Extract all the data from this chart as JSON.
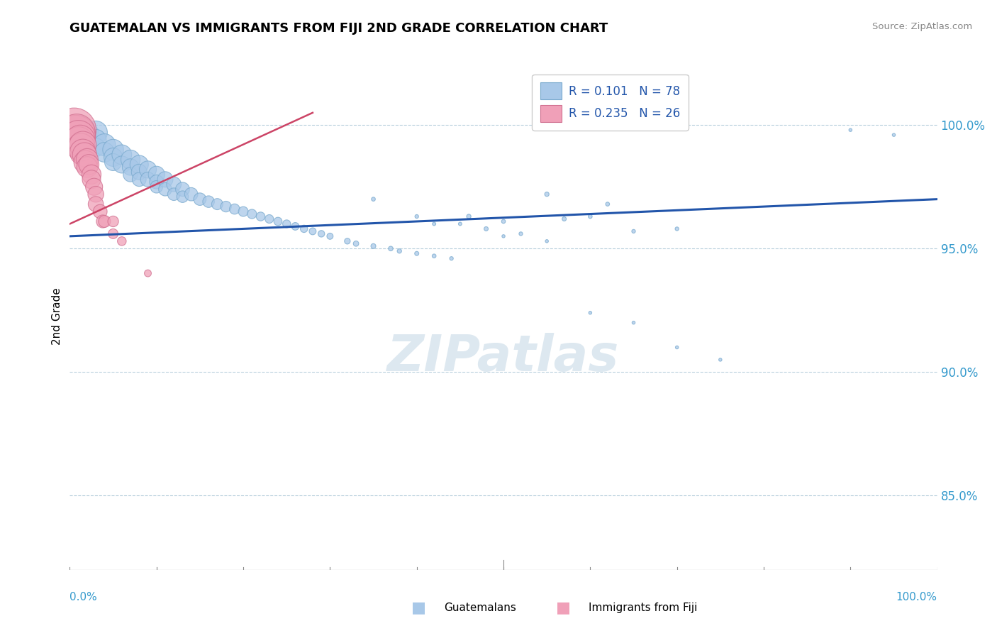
{
  "title": "GUATEMALAN VS IMMIGRANTS FROM FIJI 2ND GRADE CORRELATION CHART",
  "source": "Source: ZipAtlas.com",
  "ylabel": "2nd Grade",
  "xlim": [
    0.0,
    1.0
  ],
  "ylim": [
    0.82,
    1.025
  ],
  "legend_r_blue": "0.101",
  "legend_n_blue": "78",
  "legend_r_pink": "0.235",
  "legend_n_pink": "26",
  "legend_label_blue": "Guatemalans",
  "legend_label_pink": "Immigrants from Fiji",
  "blue_color": "#a8c8e8",
  "blue_edge_color": "#7aaace",
  "pink_color": "#f0a0b8",
  "pink_edge_color": "#d07090",
  "trendline_blue_color": "#2255aa",
  "trendline_pink_color": "#cc4466",
  "watermark_color": "#dde8f0",
  "grid_color": "#b8d0dc",
  "blue_x": [
    0.01,
    0.01,
    0.02,
    0.02,
    0.03,
    0.03,
    0.03,
    0.04,
    0.04,
    0.05,
    0.05,
    0.05,
    0.06,
    0.06,
    0.07,
    0.07,
    0.07,
    0.08,
    0.08,
    0.08,
    0.09,
    0.09,
    0.1,
    0.1,
    0.1,
    0.11,
    0.11,
    0.12,
    0.12,
    0.13,
    0.13,
    0.14,
    0.15,
    0.16,
    0.17,
    0.18,
    0.19,
    0.2,
    0.21,
    0.22,
    0.23,
    0.24,
    0.25,
    0.26,
    0.27,
    0.28,
    0.29,
    0.3,
    0.32,
    0.33,
    0.35,
    0.37,
    0.38,
    0.4,
    0.42,
    0.44,
    0.46,
    0.48,
    0.5,
    0.52,
    0.55,
    0.57,
    0.6,
    0.62,
    0.65,
    0.7,
    0.35,
    0.4,
    0.42,
    0.45,
    0.5,
    0.55,
    0.6,
    0.65,
    0.7,
    0.75,
    0.9,
    0.95
  ],
  "blue_y": [
    0.998,
    0.995,
    0.996,
    0.993,
    0.997,
    0.994,
    0.991,
    0.992,
    0.989,
    0.99,
    0.987,
    0.985,
    0.988,
    0.984,
    0.986,
    0.983,
    0.98,
    0.984,
    0.981,
    0.978,
    0.982,
    0.978,
    0.98,
    0.977,
    0.975,
    0.978,
    0.974,
    0.976,
    0.972,
    0.974,
    0.971,
    0.972,
    0.97,
    0.969,
    0.968,
    0.967,
    0.966,
    0.965,
    0.964,
    0.963,
    0.962,
    0.961,
    0.96,
    0.959,
    0.958,
    0.957,
    0.956,
    0.955,
    0.953,
    0.952,
    0.951,
    0.95,
    0.949,
    0.948,
    0.947,
    0.946,
    0.963,
    0.958,
    0.961,
    0.956,
    0.972,
    0.962,
    0.963,
    0.968,
    0.957,
    0.958,
    0.97,
    0.963,
    0.96,
    0.96,
    0.955,
    0.953,
    0.924,
    0.92,
    0.91,
    0.905,
    0.998,
    0.996
  ],
  "blue_sizes": [
    900,
    700,
    600,
    500,
    550,
    450,
    350,
    500,
    400,
    450,
    350,
    300,
    400,
    300,
    380,
    280,
    220,
    350,
    250,
    200,
    300,
    220,
    280,
    200,
    160,
    250,
    180,
    220,
    160,
    200,
    140,
    180,
    160,
    140,
    130,
    120,
    110,
    100,
    90,
    80,
    75,
    70,
    65,
    60,
    55,
    50,
    45,
    40,
    35,
    30,
    25,
    22,
    20,
    18,
    16,
    14,
    20,
    18,
    16,
    14,
    20,
    18,
    16,
    16,
    14,
    14,
    16,
    14,
    12,
    12,
    10,
    10,
    10,
    10,
    10,
    10,
    10,
    10
  ],
  "pink_x": [
    0.005,
    0.007,
    0.008,
    0.01,
    0.01,
    0.012,
    0.013,
    0.015,
    0.015,
    0.017,
    0.018,
    0.02,
    0.02,
    0.022,
    0.025,
    0.025,
    0.028,
    0.03,
    0.03,
    0.035,
    0.038,
    0.04,
    0.05,
    0.05,
    0.06,
    0.09
  ],
  "pink_y": [
    0.998,
    0.996,
    0.997,
    0.995,
    0.993,
    0.994,
    0.991,
    0.992,
    0.989,
    0.988,
    0.985,
    0.986,
    0.983,
    0.984,
    0.98,
    0.978,
    0.975,
    0.972,
    0.968,
    0.965,
    0.961,
    0.961,
    0.961,
    0.956,
    0.953,
    0.94
  ],
  "pink_sizes": [
    2000,
    1600,
    1400,
    1200,
    1000,
    900,
    800,
    750,
    700,
    600,
    550,
    500,
    450,
    420,
    380,
    350,
    300,
    260,
    240,
    200,
    170,
    150,
    120,
    100,
    80,
    50
  ],
  "blue_trend_x0": 0.0,
  "blue_trend_y0": 0.955,
  "blue_trend_x1": 1.0,
  "blue_trend_y1": 0.97,
  "pink_trend_x0": 0.0,
  "pink_trend_y0": 0.96,
  "pink_trend_x1": 0.28,
  "pink_trend_y1": 1.005
}
